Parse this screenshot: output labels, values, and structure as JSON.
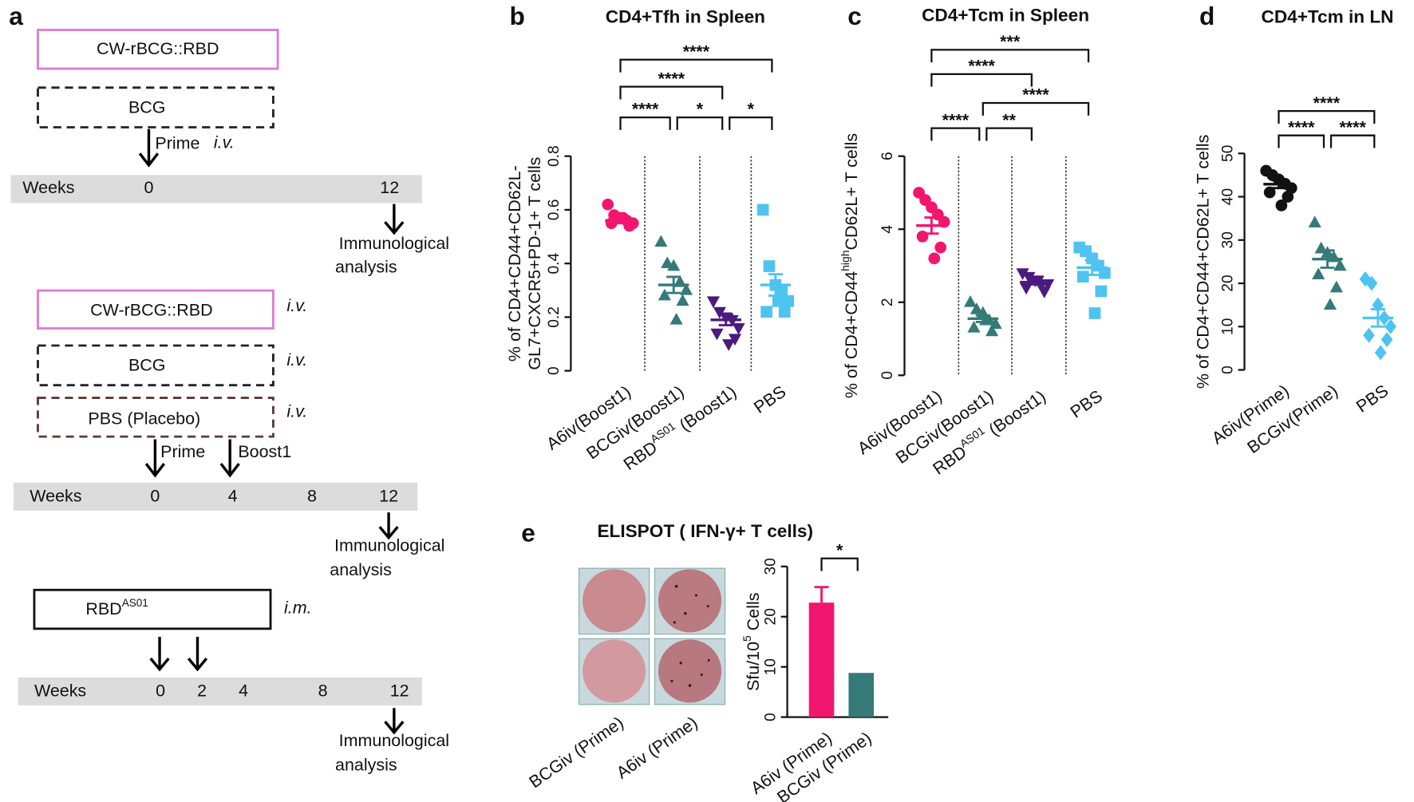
{
  "schematic": {
    "panel": "a",
    "regimen_1": {
      "boxes": [
        "CW-rBCG::RBD",
        "BCG"
      ],
      "dose_labels": [
        "Prime"
      ],
      "route": "i.v.",
      "axis_label": "Weeks",
      "weeks": [
        "0",
        "12"
      ],
      "readout": [
        "Immunological",
        "analysis"
      ]
    },
    "regimen_2": {
      "boxes": [
        "CW-rBCG::RBD",
        "BCG",
        "PBS (Placebo)"
      ],
      "routes": [
        "i.v.",
        "i.v.",
        "i.v."
      ],
      "dose_labels": [
        "Prime",
        "Boost1"
      ],
      "axis_label": "Weeks",
      "weeks": [
        "0",
        "4",
        "8",
        "12"
      ],
      "readout": [
        "Immunological",
        "analysis"
      ]
    },
    "regimen_3": {
      "box": [
        {
          "text": "RBD"
        },
        {
          "text": "AS01",
          "sup": true
        }
      ],
      "route": "i.m.",
      "axis_label": "Weeks",
      "weeks": [
        "0",
        "2",
        "4",
        "8",
        "12"
      ],
      "readout": [
        "Immunological",
        "analysis"
      ]
    }
  },
  "chart_data": [
    {
      "panel": "b",
      "type": "dot_plot",
      "title": "CD4+Tfh in Spleen",
      "y_label": [
        "% of CD4+CD44+CD62L-",
        "GL7+CXCR5+PD-1+  T cells"
      ],
      "categories": [
        "A6iv(Boost1)",
        "BCGiv(Boost1)",
        [
          {
            "text": "RBD"
          },
          {
            "text": "AS01",
            "sup": true
          },
          {
            "text": " (Boost1)"
          }
        ],
        "PBS"
      ],
      "ylim": [
        0,
        0.8
      ],
      "yticks": [
        0,
        0.2,
        0.4,
        0.6,
        0.8
      ],
      "separators": true,
      "groups": [
        {
          "color": "#f2166f",
          "marker": "circle",
          "values": [
            0.62,
            0.58,
            0.57,
            0.56,
            0.55,
            0.55,
            0.54,
            0.57
          ],
          "mean": 0.56,
          "sem": 0.01
        },
        {
          "color": "#357a78",
          "marker": "triangle",
          "values": [
            0.48,
            0.4,
            0.39,
            0.33,
            0.3,
            0.28,
            0.26,
            0.19
          ],
          "mean": 0.32,
          "sem": 0.03
        },
        {
          "color": "#4a1a7e",
          "marker": "triangle-down",
          "values": [
            0.26,
            0.22,
            0.2,
            0.19,
            0.16,
            0.14,
            0.12,
            0.1
          ],
          "mean": 0.19,
          "sem": 0.02
        },
        {
          "color": "#4fc3f0",
          "marker": "square",
          "values": [
            0.6,
            0.39,
            0.32,
            0.3,
            0.26,
            0.22,
            0.22,
            0.26
          ],
          "mean": 0.32,
          "sem": 0.04
        }
      ],
      "comparisons": [
        {
          "groups": [
            0,
            3
          ],
          "label": "****"
        },
        {
          "groups": [
            0,
            2
          ],
          "label": "****"
        },
        {
          "groups": [
            0,
            1
          ],
          "label": "****"
        },
        {
          "groups": [
            1,
            2
          ],
          "label": "*"
        },
        {
          "groups": [
            2,
            3
          ],
          "label": "*"
        }
      ]
    },
    {
      "panel": "c",
      "type": "dot_plot",
      "title": "CD4+Tcm in Spleen",
      "y_label": [
        [
          {
            "text": "% of CD4+CD44"
          },
          {
            "text": "high",
            "sup": true
          },
          {
            "text": "CD62L+  T cells"
          }
        ]
      ],
      "categories": [
        "A6iv(Boost1)",
        "BCGiv(Boost1)",
        [
          {
            "text": "RBD"
          },
          {
            "text": "AS01",
            "sup": true
          },
          {
            "text": " (Boost1)"
          }
        ],
        "PBS"
      ],
      "ylim": [
        0,
        6
      ],
      "yticks": [
        0,
        2,
        4,
        6
      ],
      "separators": true,
      "groups": [
        {
          "color": "#f2166f",
          "marker": "circle",
          "values": [
            5.0,
            4.8,
            4.6,
            4.4,
            4.2,
            3.8,
            3.5,
            3.2
          ],
          "mean": 4.1,
          "sem": 0.22
        },
        {
          "color": "#357a78",
          "marker": "triangle",
          "values": [
            2.0,
            1.8,
            1.7,
            1.5,
            1.4,
            1.3,
            1.2,
            1.5
          ],
          "mean": 1.55,
          "sem": 0.09
        },
        {
          "color": "#4a1a7e",
          "marker": "triangle-down",
          "values": [
            2.8,
            2.7,
            2.6,
            2.5,
            2.5,
            2.4,
            2.3,
            2.6
          ],
          "mean": 2.55,
          "sem": 0.06
        },
        {
          "color": "#4fc3f0",
          "marker": "square",
          "values": [
            3.5,
            3.4,
            3.2,
            3.0,
            2.8,
            2.7,
            2.3,
            1.7
          ],
          "mean": 2.95,
          "sem": 0.2
        }
      ],
      "comparisons": [
        {
          "groups": [
            0,
            3
          ],
          "label": "***"
        },
        {
          "groups": [
            0,
            2
          ],
          "label": "****"
        },
        {
          "groups": [
            1,
            3
          ],
          "label": "****"
        },
        {
          "groups": [
            0,
            1
          ],
          "label": "****"
        },
        {
          "groups": [
            1,
            2
          ],
          "label": "**"
        }
      ]
    },
    {
      "panel": "d",
      "type": "dot_plot",
      "title": "CD4+Tcm in LN",
      "y_label": [
        "% of CD4+CD44+CD62L+ T cells"
      ],
      "categories": [
        "A6iv(Prime)",
        "BCGiv(Prime)",
        "PBS"
      ],
      "ylim": [
        0,
        50
      ],
      "yticks": [
        0,
        10,
        20,
        30,
        40,
        50
      ],
      "separators": false,
      "groups": [
        {
          "color": "#111111",
          "marker": "circle",
          "values": [
            46,
            45,
            44,
            43,
            42,
            41,
            40,
            38
          ],
          "mean": 42.9,
          "sem": 0.9
        },
        {
          "color": "#357a78",
          "marker": "triangle",
          "values": [
            34,
            28,
            27,
            26,
            24,
            22,
            19,
            15
          ],
          "mean": 25.6,
          "sem": 2
        },
        {
          "color": "#4fc3f0",
          "marker": "diamond",
          "values": [
            21,
            20,
            15,
            12,
            10,
            8,
            7,
            4
          ],
          "mean": 12,
          "sem": 2
        }
      ],
      "comparisons": [
        {
          "groups": [
            0,
            2
          ],
          "label": "****"
        },
        {
          "groups": [
            0,
            1
          ],
          "label": "****"
        },
        {
          "groups": [
            1,
            2
          ],
          "label": "****"
        }
      ]
    },
    {
      "panel": "e",
      "type": "bar",
      "title": "ELISPOT ( IFN-γ+ T cells)",
      "image_labels": [
        "BCGiv (Prime)",
        "A6iv (Prime)"
      ],
      "y_label": [
        [
          {
            "text": "Sfu/10"
          },
          {
            "text": "5",
            "sup": true
          },
          {
            "text": " Cells"
          }
        ]
      ],
      "categories": [
        "A6iv (Prime)",
        "BCGiv (Prime)"
      ],
      "values": [
        22.8,
        8.8
      ],
      "errors": [
        3.1,
        null
      ],
      "colors": [
        "#f2166f",
        "#357a78"
      ],
      "ylim": [
        0,
        30
      ],
      "yticks": [
        0,
        10,
        20,
        30
      ],
      "comparisons": [
        {
          "groups": [
            0,
            1
          ],
          "label": "*"
        }
      ]
    }
  ]
}
